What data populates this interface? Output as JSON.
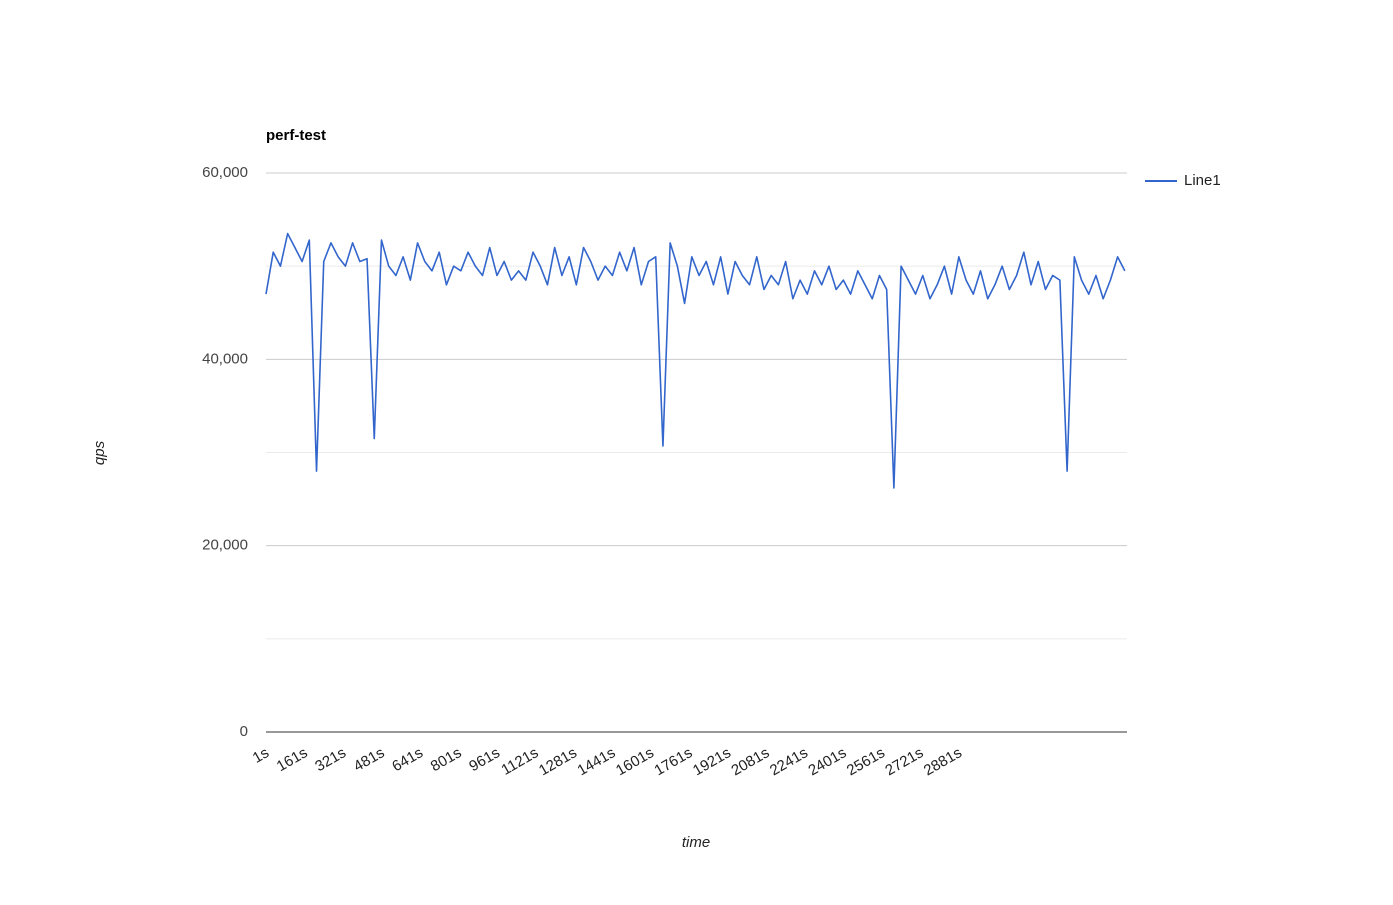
{
  "chart_data": {
    "type": "line",
    "title": "perf-test",
    "x_label": "time",
    "y_label": "qps",
    "x": [
      1,
      31,
      61,
      91,
      121,
      151,
      181,
      211,
      241,
      271,
      301,
      331,
      361,
      391,
      421,
      451,
      481,
      511,
      541,
      571,
      601,
      631,
      661,
      691,
      721,
      751,
      781,
      811,
      841,
      871,
      901,
      931,
      961,
      991,
      1021,
      1051,
      1081,
      1111,
      1141,
      1171,
      1201,
      1231,
      1261,
      1291,
      1321,
      1351,
      1381,
      1411,
      1441,
      1471,
      1501,
      1531,
      1561,
      1591,
      1621,
      1651,
      1681,
      1711,
      1741,
      1771,
      1801,
      1831,
      1861,
      1891,
      1921,
      1951,
      1981,
      2011,
      2041,
      2071,
      2101,
      2131,
      2161,
      2191,
      2221,
      2251,
      2281,
      2311,
      2341,
      2371,
      2401,
      2431,
      2461,
      2491,
      2521,
      2551,
      2581,
      2611,
      2641,
      2671,
      2701,
      2731,
      2761,
      2791,
      2821,
      2851,
      2881,
      2911,
      2941,
      2971,
      3001,
      3031,
      3061,
      3091,
      3121,
      3151,
      3181,
      3211,
      3241,
      3271,
      3301,
      3331,
      3361,
      3391,
      3421,
      3451,
      3481,
      3511,
      3541,
      3571
    ],
    "series": [
      {
        "name": "Line1",
        "color": "#3366cc",
        "values": [
          47000,
          51500,
          50000,
          53500,
          52000,
          50500,
          52800,
          28000,
          50500,
          52500,
          51000,
          50000,
          52500,
          50500,
          50800,
          31500,
          52800,
          50000,
          49000,
          51000,
          48500,
          52500,
          50500,
          49500,
          51500,
          48000,
          50000,
          49500,
          51500,
          50000,
          49000,
          52000,
          49000,
          50500,
          48500,
          49500,
          48500,
          51500,
          50000,
          48000,
          52000,
          49000,
          51000,
          48000,
          52000,
          50500,
          48500,
          50000,
          49000,
          51500,
          49500,
          52000,
          48000,
          50500,
          51000,
          30700,
          52500,
          50000,
          46000,
          51000,
          49000,
          50500,
          48000,
          51000,
          47000,
          50500,
          49000,
          48000,
          51000,
          47500,
          49000,
          48000,
          50500,
          46500,
          48500,
          47000,
          49500,
          48000,
          50000,
          47500,
          48500,
          47000,
          49500,
          48000,
          46500,
          49000,
          47500,
          26200,
          50000,
          48500,
          47000,
          49000,
          46500,
          48000,
          50000,
          47000,
          51000,
          48500,
          47000,
          49500,
          46500,
          48000,
          50000,
          47500,
          49000,
          51500,
          48000,
          50500,
          47500,
          49000,
          48500,
          28000,
          51000,
          48500,
          47000,
          49000,
          46500,
          48500,
          51000,
          49500
        ]
      }
    ],
    "xlim": [
      1,
      3580
    ],
    "xticks": [
      {
        "value": 1,
        "label": "1s"
      },
      {
        "value": 161,
        "label": "161s"
      },
      {
        "value": 321,
        "label": "321s"
      },
      {
        "value": 481,
        "label": "481s"
      },
      {
        "value": 641,
        "label": "641s"
      },
      {
        "value": 801,
        "label": "801s"
      },
      {
        "value": 961,
        "label": "961s"
      },
      {
        "value": 1121,
        "label": "1121s"
      },
      {
        "value": 1281,
        "label": "1281s"
      },
      {
        "value": 1441,
        "label": "1441s"
      },
      {
        "value": 1601,
        "label": "1601s"
      },
      {
        "value": 1761,
        "label": "1761s"
      },
      {
        "value": 1921,
        "label": "1921s"
      },
      {
        "value": 2081,
        "label": "2081s"
      },
      {
        "value": 2241,
        "label": "2241s"
      },
      {
        "value": 2401,
        "label": "2401s"
      },
      {
        "value": 2561,
        "label": "2561s"
      },
      {
        "value": 2721,
        "label": "2721s"
      },
      {
        "value": 2881,
        "label": "2881s"
      }
    ],
    "ylim": [
      0,
      60000
    ],
    "yticks": [
      {
        "value": 0,
        "label": "0"
      },
      {
        "value": 20000,
        "label": "20,000"
      },
      {
        "value": 40000,
        "label": "40,000"
      },
      {
        "value": 60000,
        "label": "60,000"
      }
    ],
    "minor_yticks": [
      10000,
      30000,
      50000
    ],
    "grid": true,
    "legend": "right"
  }
}
